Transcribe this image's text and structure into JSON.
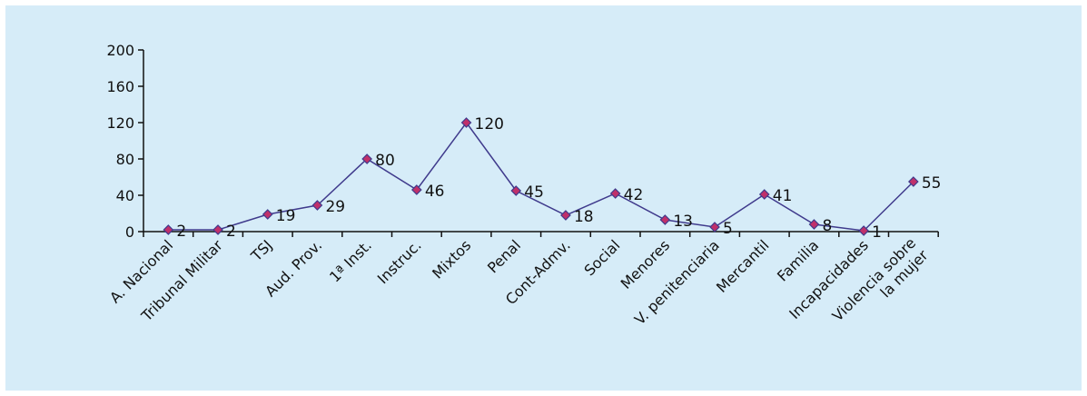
{
  "chart_data": {
    "type": "line",
    "title": "",
    "xlabel": "",
    "ylabel": "",
    "ylim": [
      0,
      200
    ],
    "yticks": [
      0,
      40,
      80,
      120,
      160,
      200
    ],
    "grid": false,
    "legend": "none",
    "categories": [
      [
        "A. Nacional"
      ],
      [
        "Tribunal Militar"
      ],
      [
        "TSJ"
      ],
      [
        "Aud. Prov."
      ],
      [
        "1ª Inst."
      ],
      [
        "Instruc."
      ],
      [
        "Mixtos"
      ],
      [
        "Penal"
      ],
      [
        "Cont-Admv."
      ],
      [
        "Social"
      ],
      [
        "Menores"
      ],
      [
        "V. penitenciaria"
      ],
      [
        "Mercantil"
      ],
      [
        "Familia"
      ],
      [
        "Incapacidades"
      ],
      [
        "Violencia sobre",
        "la mujer"
      ]
    ],
    "series": [
      {
        "values": [
          2,
          2,
          19,
          29,
          80,
          46,
          120,
          45,
          18,
          42,
          13,
          5,
          41,
          8,
          1,
          55
        ]
      }
    ],
    "colors": {
      "background": "#d6ecf8",
      "line": "#3f3a8c",
      "marker_fill": "#c0306a",
      "marker_stroke": "#3f3a8c",
      "axis": "#111111"
    }
  }
}
